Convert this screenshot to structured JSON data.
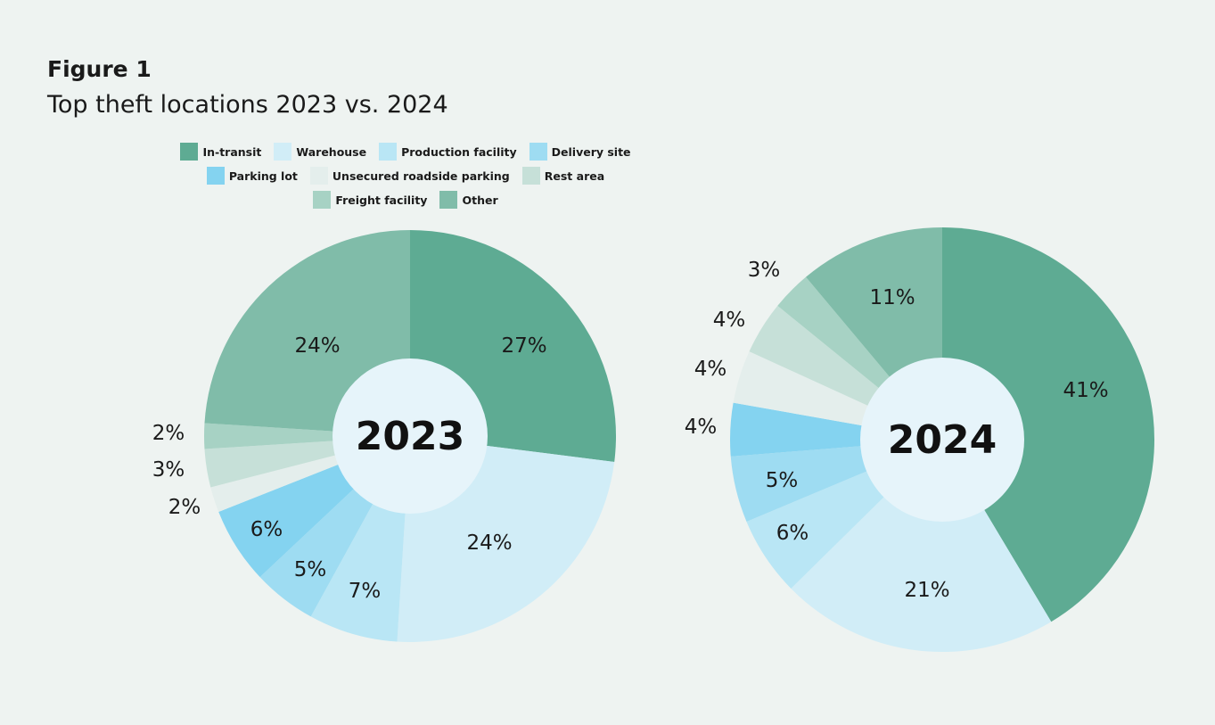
{
  "figure": {
    "label": "Figure 1",
    "title": "Top theft locations 2023 vs. 2024"
  },
  "legend": {
    "rows": [
      [
        0,
        1,
        2,
        3
      ],
      [
        4,
        5,
        6
      ],
      [
        7,
        8
      ]
    ]
  },
  "colors": {
    "background": "#eef3f1",
    "hole": "#e6f4fa"
  },
  "chart_data": [
    {
      "type": "pie",
      "title": "2023",
      "categories": [
        "In-transit",
        "Warehouse",
        "Production facility",
        "Delivery site",
        "Parking lot",
        "Unsecured roadside parking",
        "Rest area",
        "Freight facility",
        "Other"
      ],
      "colors": [
        "#5eab93",
        "#d1edf7",
        "#b9e6f5",
        "#9edcf2",
        "#84d3f0",
        "#e4eeec",
        "#c6e0d8",
        "#a7d2c4",
        "#80bca9"
      ],
      "values": [
        27,
        24,
        7,
        5,
        6,
        2,
        3,
        2,
        24
      ],
      "labels": [
        "27%",
        "24%",
        "7%",
        "5%",
        "6%",
        "2%",
        "3%",
        "2%",
        "24%"
      ]
    },
    {
      "type": "pie",
      "title": "2024",
      "categories": [
        "In-transit",
        "Warehouse",
        "Production facility",
        "Delivery site",
        "Parking lot",
        "Unsecured roadside parking",
        "Rest area",
        "Freight facility",
        "Other"
      ],
      "colors": [
        "#5eab93",
        "#d1edf7",
        "#b9e6f5",
        "#9edcf2",
        "#84d3f0",
        "#e4eeec",
        "#c6e0d8",
        "#a7d2c4",
        "#80bca9"
      ],
      "values": [
        41,
        21,
        6,
        5,
        4,
        4,
        4,
        3,
        11
      ],
      "labels": [
        "41%",
        "21%",
        "6%",
        "5%",
        "4%",
        "4%",
        "4%",
        "3%",
        "11%"
      ]
    }
  ]
}
